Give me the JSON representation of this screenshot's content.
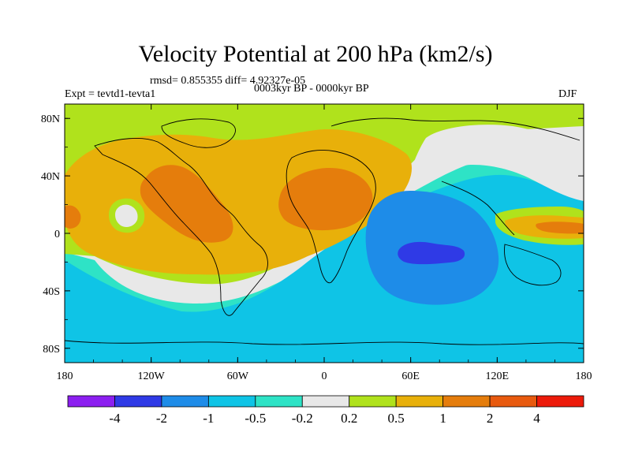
{
  "title": "Velocity Potential at 200 hPa (km2/s)",
  "stats_line": "rmsd= 0.855355 diff= 4.92327e-05",
  "left_label": "Expt = tevtd1-tevta1",
  "center_label": "0003kyr BP - 0000kyr BP",
  "right_label": "DJF",
  "chart_data": {
    "type": "heatmap",
    "title": "Velocity Potential at 200 hPa (km2/s)",
    "xlabel": "",
    "ylabel": "",
    "xlim": [
      -180,
      180
    ],
    "ylim": [
      -90,
      90
    ],
    "x_ticks": [
      {
        "value": -180,
        "label": "180"
      },
      {
        "value": -120,
        "label": "120W"
      },
      {
        "value": -60,
        "label": "60W"
      },
      {
        "value": 0,
        "label": "0"
      },
      {
        "value": 60,
        "label": "60E"
      },
      {
        "value": 120,
        "label": "120E"
      },
      {
        "value": 180,
        "label": "180"
      }
    ],
    "y_ticks": [
      {
        "value": 80,
        "label": "80N"
      },
      {
        "value": 40,
        "label": "40N"
      },
      {
        "value": 0,
        "label": "0"
      },
      {
        "value": -40,
        "label": "40S"
      },
      {
        "value": -80,
        "label": "80S"
      }
    ],
    "colorbar": {
      "levels": [
        "-4",
        "-2",
        "-1",
        "-0.5",
        "-0.2",
        "0.2",
        "0.5",
        "1",
        "2",
        "4"
      ],
      "colors": [
        "#8c1ff0",
        "#2f3ae6",
        "#1e8ce8",
        "#0fc4e6",
        "#2ee3c6",
        "#e8e8e8",
        "#b0e21c",
        "#e8b00a",
        "#e57d0c",
        "#e85a0f",
        "#ec1a0a"
      ]
    },
    "regions": [
      {
        "name": "base-negative-south",
        "level": -0.5,
        "center": [
          0,
          -65
        ]
      },
      {
        "name": "northern-band",
        "level": 0.2,
        "center": [
          0,
          75
        ]
      },
      {
        "name": "americas-atlantic-positive",
        "level": 0.5,
        "center": [
          -90,
          25
        ]
      },
      {
        "name": "americas-max",
        "level": 1,
        "center": [
          -110,
          10
        ]
      },
      {
        "name": "north-atlantic-core",
        "level": 2,
        "center": [
          -105,
          15
        ]
      },
      {
        "name": "africa-core",
        "level": 2,
        "center": [
          10,
          18
        ]
      },
      {
        "name": "east-pacific-weak-spot",
        "level": 0.2,
        "center": [
          -145,
          7
        ]
      },
      {
        "name": "indian-ocean-negative",
        "level": -1,
        "center": [
          70,
          -12
        ]
      },
      {
        "name": "indian-ocean-min",
        "level": -2,
        "center": [
          70,
          -15
        ]
      },
      {
        "name": "west-pacific-positive",
        "level": 1,
        "center": [
          155,
          7
        ]
      }
    ]
  }
}
